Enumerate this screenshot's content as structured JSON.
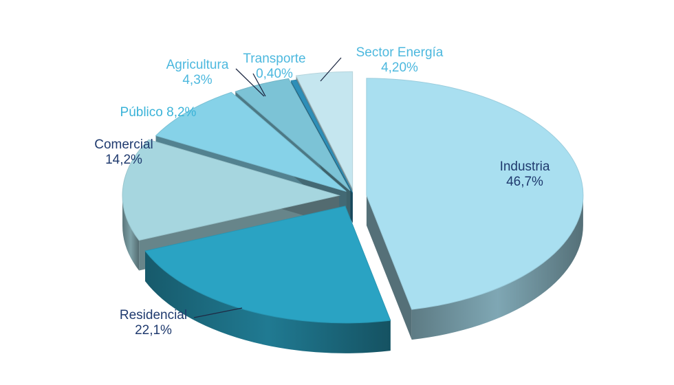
{
  "chart_data": {
    "type": "pie",
    "style": "3d-exploded",
    "legend": "none",
    "slices": [
      {
        "label": "Industria",
        "value_label": "46,7%",
        "value": 46.7,
        "color": "#a9dff0",
        "text_color": "#1f3a6e"
      },
      {
        "label": "Residencial",
        "value_label": "22,1%",
        "value": 22.1,
        "color": "#2aa3c3",
        "text_color": "#1f3a6e"
      },
      {
        "label": "Comercial",
        "value_label": "14,2%",
        "value": 14.2,
        "color": "#a6d6df",
        "text_color": "#1f3a6e"
      },
      {
        "label": "Público",
        "value_label": "8,2%",
        "value": 8.2,
        "color": "#86d2e8",
        "text_color": "#3ab3d8"
      },
      {
        "label": "Agricultura",
        "value_label": "4,3%",
        "value": 4.3,
        "color": "#7cc3d6",
        "text_color": "#4cb8de"
      },
      {
        "label": "Transporte",
        "value_label": "0,40%",
        "value": 0.4,
        "color": "#2f8fb8",
        "text_color": "#4cb8de"
      },
      {
        "label": "Sector Energía",
        "value_label": "4,20%",
        "value": 4.2,
        "color": "#c5e6ef",
        "text_color": "#4cb8de"
      }
    ]
  }
}
